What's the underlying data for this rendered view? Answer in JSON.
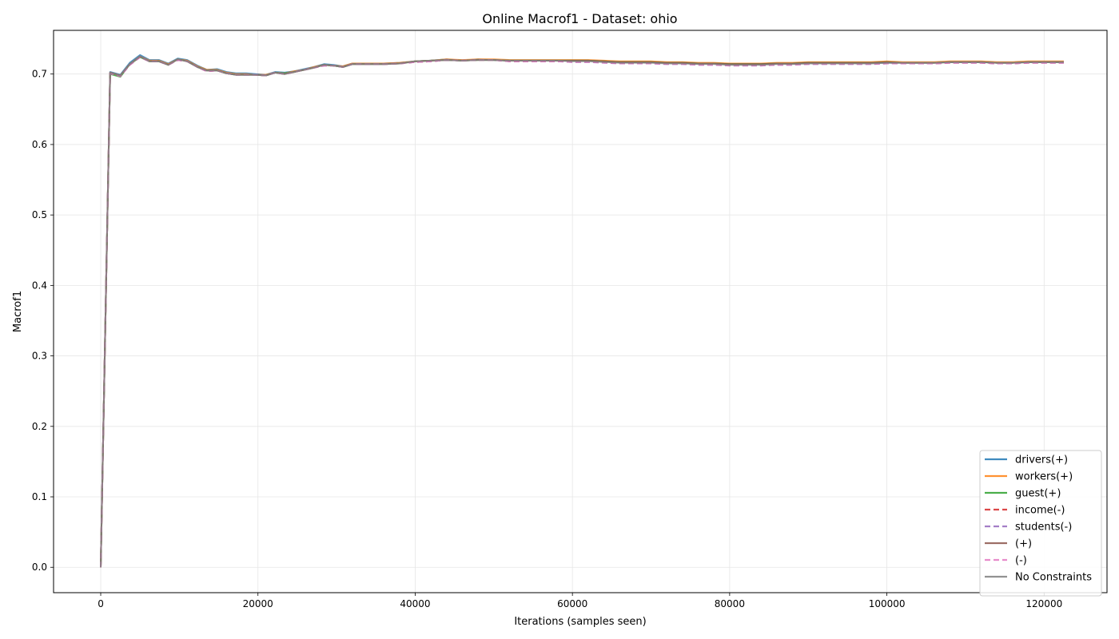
{
  "chart_data": {
    "type": "line",
    "title": "Online Macrof1 - Dataset: ohio",
    "xlabel": "Iterations (samples seen)",
    "ylabel": "Macrof1",
    "xlim": [
      -6000,
      128000
    ],
    "ylim": [
      -0.036,
      0.762
    ],
    "xticks": [
      0,
      20000,
      40000,
      60000,
      80000,
      100000,
      120000
    ],
    "yticks": [
      0.0,
      0.1,
      0.2,
      0.3,
      0.4,
      0.5,
      0.6,
      0.7
    ],
    "grid": true,
    "legend_position": "lower-right",
    "x": [
      0,
      1200,
      2500,
      3700,
      5000,
      6200,
      7400,
      8600,
      9800,
      11000,
      12300,
      13500,
      14800,
      16000,
      17200,
      18500,
      19700,
      21000,
      22200,
      23400,
      24600,
      25900,
      27100,
      28400,
      29600,
      30800,
      32000,
      34000,
      36000,
      38000,
      40000,
      42000,
      44000,
      46000,
      48000,
      50000,
      52000,
      54000,
      56000,
      58000,
      60000,
      62000,
      64000,
      66000,
      68000,
      70000,
      72000,
      74000,
      76000,
      78000,
      80000,
      82000,
      84000,
      86000,
      88000,
      90000,
      92000,
      94000,
      96000,
      98000,
      100000,
      102000,
      104000,
      106000,
      108000,
      110000,
      112000,
      114000,
      116000,
      118000,
      120000,
      122500
    ],
    "series": [
      {
        "name": "drivers(+)",
        "color": "#1f77b4",
        "dash": false,
        "values": [
          0.0,
          0.703,
          0.699,
          0.716,
          0.727,
          0.72,
          0.72,
          0.715,
          0.722,
          0.72,
          0.712,
          0.706,
          0.707,
          0.703,
          0.701,
          0.701,
          0.7,
          0.699,
          0.703,
          0.702,
          0.704,
          0.707,
          0.71,
          0.714,
          0.713,
          0.711,
          0.715,
          0.715,
          0.715,
          0.716,
          0.718,
          0.719,
          0.721,
          0.719,
          0.721,
          0.72,
          0.719,
          0.719,
          0.719,
          0.719,
          0.719,
          0.719,
          0.718,
          0.717,
          0.717,
          0.717,
          0.716,
          0.716,
          0.715,
          0.715,
          0.714,
          0.714,
          0.714,
          0.715,
          0.715,
          0.716,
          0.716,
          0.716,
          0.716,
          0.716,
          0.716,
          0.716,
          0.716,
          0.716,
          0.717,
          0.717,
          0.717,
          0.716,
          0.716,
          0.717,
          0.717,
          0.717
        ]
      },
      {
        "name": "workers(+)",
        "color": "#ff7f0e",
        "dash": false,
        "values": [
          0.0,
          0.702,
          0.698,
          0.714,
          0.725,
          0.719,
          0.719,
          0.714,
          0.721,
          0.719,
          0.711,
          0.706,
          0.706,
          0.702,
          0.7,
          0.7,
          0.699,
          0.699,
          0.702,
          0.701,
          0.704,
          0.706,
          0.71,
          0.713,
          0.712,
          0.711,
          0.715,
          0.715,
          0.715,
          0.716,
          0.718,
          0.719,
          0.721,
          0.72,
          0.721,
          0.721,
          0.72,
          0.72,
          0.72,
          0.72,
          0.72,
          0.72,
          0.719,
          0.718,
          0.718,
          0.718,
          0.717,
          0.717,
          0.716,
          0.716,
          0.715,
          0.715,
          0.715,
          0.716,
          0.716,
          0.717,
          0.717,
          0.717,
          0.717,
          0.717,
          0.718,
          0.717,
          0.717,
          0.717,
          0.718,
          0.718,
          0.718,
          0.717,
          0.717,
          0.718,
          0.718,
          0.718
        ]
      },
      {
        "name": "guest(+)",
        "color": "#2ca02c",
        "dash": false,
        "values": [
          0.0,
          0.7,
          0.696,
          0.714,
          0.724,
          0.718,
          0.718,
          0.713,
          0.721,
          0.718,
          0.71,
          0.705,
          0.705,
          0.701,
          0.699,
          0.699,
          0.699,
          0.698,
          0.702,
          0.701,
          0.703,
          0.706,
          0.709,
          0.713,
          0.712,
          0.71,
          0.714,
          0.714,
          0.714,
          0.715,
          0.718,
          0.719,
          0.72,
          0.719,
          0.72,
          0.72,
          0.719,
          0.719,
          0.719,
          0.719,
          0.719,
          0.719,
          0.718,
          0.717,
          0.717,
          0.717,
          0.716,
          0.716,
          0.715,
          0.715,
          0.714,
          0.714,
          0.714,
          0.715,
          0.715,
          0.716,
          0.716,
          0.716,
          0.716,
          0.716,
          0.717,
          0.716,
          0.716,
          0.716,
          0.717,
          0.717,
          0.717,
          0.716,
          0.716,
          0.717,
          0.717,
          0.717
        ]
      },
      {
        "name": "income(-)",
        "color": "#d62728",
        "dash": true,
        "values": [
          0.0,
          0.701,
          0.697,
          0.713,
          0.724,
          0.718,
          0.718,
          0.713,
          0.72,
          0.718,
          0.71,
          0.704,
          0.705,
          0.701,
          0.699,
          0.699,
          0.699,
          0.698,
          0.702,
          0.7,
          0.703,
          0.706,
          0.709,
          0.712,
          0.712,
          0.71,
          0.714,
          0.714,
          0.714,
          0.715,
          0.717,
          0.718,
          0.72,
          0.719,
          0.72,
          0.72,
          0.718,
          0.718,
          0.718,
          0.718,
          0.718,
          0.718,
          0.717,
          0.716,
          0.716,
          0.716,
          0.715,
          0.715,
          0.714,
          0.714,
          0.713,
          0.713,
          0.713,
          0.714,
          0.714,
          0.715,
          0.715,
          0.715,
          0.715,
          0.715,
          0.716,
          0.715,
          0.715,
          0.715,
          0.716,
          0.716,
          0.716,
          0.715,
          0.715,
          0.716,
          0.716,
          0.716
        ]
      },
      {
        "name": "students(-)",
        "color": "#9467bd",
        "dash": true,
        "values": [
          0.0,
          0.701,
          0.697,
          0.713,
          0.724,
          0.718,
          0.718,
          0.713,
          0.72,
          0.718,
          0.71,
          0.704,
          0.705,
          0.701,
          0.699,
          0.699,
          0.699,
          0.698,
          0.702,
          0.7,
          0.703,
          0.706,
          0.709,
          0.712,
          0.712,
          0.71,
          0.714,
          0.714,
          0.714,
          0.715,
          0.717,
          0.718,
          0.72,
          0.719,
          0.72,
          0.72,
          0.718,
          0.718,
          0.718,
          0.718,
          0.717,
          0.717,
          0.716,
          0.715,
          0.715,
          0.715,
          0.714,
          0.714,
          0.713,
          0.713,
          0.712,
          0.712,
          0.712,
          0.713,
          0.713,
          0.714,
          0.714,
          0.714,
          0.714,
          0.714,
          0.715,
          0.715,
          0.715,
          0.715,
          0.716,
          0.716,
          0.716,
          0.715,
          0.715,
          0.716,
          0.716,
          0.716
        ]
      },
      {
        "name": "(+)",
        "color": "#8c564b",
        "dash": false,
        "values": [
          0.0,
          0.702,
          0.698,
          0.714,
          0.725,
          0.718,
          0.718,
          0.713,
          0.721,
          0.718,
          0.71,
          0.705,
          0.705,
          0.701,
          0.699,
          0.699,
          0.699,
          0.698,
          0.702,
          0.7,
          0.703,
          0.706,
          0.709,
          0.713,
          0.712,
          0.71,
          0.714,
          0.714,
          0.714,
          0.715,
          0.718,
          0.719,
          0.72,
          0.719,
          0.72,
          0.72,
          0.719,
          0.719,
          0.719,
          0.719,
          0.719,
          0.719,
          0.718,
          0.717,
          0.717,
          0.717,
          0.716,
          0.716,
          0.715,
          0.715,
          0.714,
          0.714,
          0.714,
          0.715,
          0.715,
          0.716,
          0.716,
          0.716,
          0.716,
          0.716,
          0.717,
          0.716,
          0.716,
          0.716,
          0.717,
          0.717,
          0.717,
          0.716,
          0.716,
          0.717,
          0.717,
          0.717
        ]
      },
      {
        "name": "(-)",
        "color": "#e377c2",
        "dash": true,
        "values": [
          0.0,
          0.701,
          0.697,
          0.713,
          0.724,
          0.718,
          0.718,
          0.713,
          0.72,
          0.718,
          0.71,
          0.704,
          0.705,
          0.701,
          0.699,
          0.699,
          0.699,
          0.698,
          0.702,
          0.7,
          0.703,
          0.706,
          0.709,
          0.712,
          0.712,
          0.71,
          0.714,
          0.714,
          0.714,
          0.715,
          0.717,
          0.718,
          0.72,
          0.719,
          0.72,
          0.72,
          0.718,
          0.718,
          0.718,
          0.718,
          0.717,
          0.717,
          0.716,
          0.715,
          0.715,
          0.715,
          0.714,
          0.714,
          0.713,
          0.713,
          0.712,
          0.712,
          0.712,
          0.713,
          0.713,
          0.714,
          0.714,
          0.714,
          0.714,
          0.714,
          0.715,
          0.715,
          0.715,
          0.715,
          0.716,
          0.716,
          0.716,
          0.715,
          0.715,
          0.716,
          0.716,
          0.716
        ]
      },
      {
        "name": "No Constraints",
        "color": "#7f7f7f",
        "dash": false,
        "values": [
          0.0,
          0.702,
          0.698,
          0.714,
          0.725,
          0.718,
          0.718,
          0.713,
          0.721,
          0.718,
          0.71,
          0.705,
          0.705,
          0.701,
          0.699,
          0.699,
          0.699,
          0.698,
          0.702,
          0.7,
          0.703,
          0.706,
          0.709,
          0.713,
          0.712,
          0.71,
          0.714,
          0.714,
          0.714,
          0.715,
          0.718,
          0.719,
          0.72,
          0.719,
          0.72,
          0.72,
          0.719,
          0.719,
          0.719,
          0.719,
          0.718,
          0.718,
          0.717,
          0.716,
          0.716,
          0.716,
          0.715,
          0.715,
          0.714,
          0.714,
          0.713,
          0.713,
          0.713,
          0.714,
          0.714,
          0.715,
          0.715,
          0.715,
          0.715,
          0.715,
          0.716,
          0.716,
          0.716,
          0.716,
          0.717,
          0.717,
          0.717,
          0.716,
          0.716,
          0.717,
          0.717,
          0.717
        ]
      }
    ]
  }
}
